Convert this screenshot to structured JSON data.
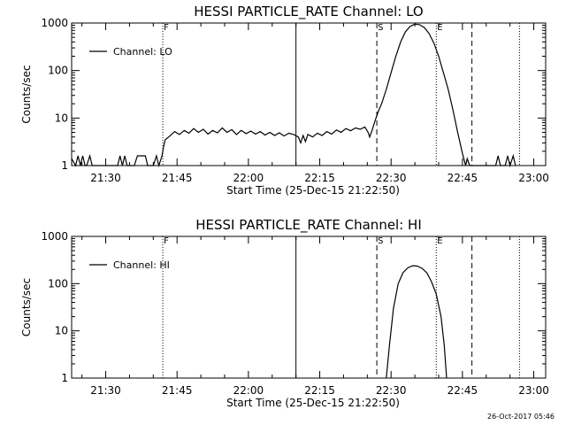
{
  "chart_data": [
    {
      "type": "line",
      "title": "HESSI PARTICLE_RATE Channel: LO",
      "xlabel": "Start Time (25-Dec-15 21:22:50)",
      "ylabel": "Counts/sec",
      "y_scale": "log",
      "xlim": [
        "21:22:50",
        "23:02:30"
      ],
      "ylim": [
        1,
        1000
      ],
      "x_ticks": [
        "21:30",
        "21:45",
        "22:00",
        "22:15",
        "22:30",
        "22:45",
        "23:00"
      ],
      "y_ticks": [
        "1",
        "10",
        "100",
        "1000"
      ],
      "legend": {
        "label": "Channel: LO",
        "position": "top-left"
      },
      "series": [
        {
          "name": "Channel: LO",
          "points": [
            [
              "21:22:50",
              1.4
            ],
            [
              "21:23:40",
              1.0
            ],
            [
              "21:24:10",
              1.6
            ],
            [
              "21:24:40",
              1.0
            ],
            [
              "21:25:10",
              1.6
            ],
            [
              "21:25:40",
              1.0
            ],
            [
              "21:26:00",
              1.0
            ],
            [
              "21:26:40",
              1.6
            ],
            [
              "21:27:10",
              1.0
            ],
            [
              "21:32:30",
              1.0
            ],
            [
              "21:33:00",
              1.6
            ],
            [
              "21:33:30",
              1.0
            ],
            [
              "21:34:00",
              1.6
            ],
            [
              "21:34:30",
              1.0
            ],
            [
              "21:36:00",
              1.0
            ],
            [
              "21:36:40",
              1.6
            ],
            [
              "21:38:20",
              1.6
            ],
            [
              "21:38:50",
              1.0
            ],
            [
              "21:40:00",
              1.0
            ],
            [
              "21:40:40",
              1.6
            ],
            [
              "21:41:10",
              1.0
            ],
            [
              "21:41:50",
              1.6
            ],
            [
              "21:42:10",
              2.5
            ],
            [
              "21:42:30",
              3.5
            ],
            [
              "21:43:30",
              4.2
            ],
            [
              "21:44:30",
              5.2
            ],
            [
              "21:45:30",
              4.5
            ],
            [
              "21:46:30",
              5.5
            ],
            [
              "21:47:30",
              4.8
            ],
            [
              "21:48:30",
              6.0
            ],
            [
              "21:49:30",
              5.0
            ],
            [
              "21:50:30",
              5.8
            ],
            [
              "21:51:30",
              4.6
            ],
            [
              "21:52:30",
              5.5
            ],
            [
              "21:53:30",
              4.9
            ],
            [
              "21:54:30",
              6.2
            ],
            [
              "21:55:30",
              5.0
            ],
            [
              "21:56:30",
              5.7
            ],
            [
              "21:57:30",
              4.5
            ],
            [
              "21:58:30",
              5.5
            ],
            [
              "21:59:30",
              4.7
            ],
            [
              "22:00:30",
              5.3
            ],
            [
              "22:01:30",
              4.6
            ],
            [
              "22:02:30",
              5.2
            ],
            [
              "22:03:30",
              4.4
            ],
            [
              "22:04:30",
              5.0
            ],
            [
              "22:05:30",
              4.3
            ],
            [
              "22:06:30",
              4.9
            ],
            [
              "22:07:30",
              4.2
            ],
            [
              "22:08:30",
              4.8
            ],
            [
              "22:09:30",
              4.5
            ],
            [
              "22:10:30",
              4.0
            ],
            [
              "22:11:00",
              3.0
            ],
            [
              "22:11:30",
              4.3
            ],
            [
              "22:12:00",
              3.2
            ],
            [
              "22:12:30",
              4.5
            ],
            [
              "22:13:30",
              4.0
            ],
            [
              "22:14:30",
              4.8
            ],
            [
              "22:15:30",
              4.3
            ],
            [
              "22:16:30",
              5.2
            ],
            [
              "22:17:30",
              4.6
            ],
            [
              "22:18:30",
              5.6
            ],
            [
              "22:19:30",
              5.0
            ],
            [
              "22:20:30",
              6.0
            ],
            [
              "22:21:30",
              5.4
            ],
            [
              "22:22:30",
              6.2
            ],
            [
              "22:23:30",
              5.8
            ],
            [
              "22:24:30",
              6.5
            ],
            [
              "22:25:10",
              5.0
            ],
            [
              "22:25:30",
              4.0
            ],
            [
              "22:26:00",
              5.5
            ],
            [
              "22:26:40",
              9.0
            ],
            [
              "22:27:20",
              14
            ],
            [
              "22:28:00",
              20
            ],
            [
              "22:29:00",
              40
            ],
            [
              "22:30:00",
              90
            ],
            [
              "22:31:00",
              200
            ],
            [
              "22:32:00",
              400
            ],
            [
              "22:33:00",
              650
            ],
            [
              "22:34:00",
              850
            ],
            [
              "22:35:00",
              950
            ],
            [
              "22:36:00",
              920
            ],
            [
              "22:37:00",
              800
            ],
            [
              "22:38:00",
              600
            ],
            [
              "22:39:00",
              380
            ],
            [
              "22:40:00",
              200
            ],
            [
              "22:41:00",
              90
            ],
            [
              "22:42:00",
              40
            ],
            [
              "22:43:00",
              15
            ],
            [
              "22:44:00",
              5
            ],
            [
              "22:45:00",
              1.8
            ],
            [
              "22:45:40",
              1.0
            ],
            [
              "22:46:00",
              1.4
            ],
            [
              "22:46:30",
              1.0
            ],
            [
              "22:52:00",
              1.0
            ],
            [
              "22:52:30",
              1.6
            ],
            [
              "22:53:00",
              1.0
            ],
            [
              "22:54:00",
              1.0
            ],
            [
              "22:54:30",
              1.6
            ],
            [
              "22:55:00",
              1.0
            ],
            [
              "22:55:40",
              1.6
            ],
            [
              "22:56:10",
              1.0
            ]
          ]
        }
      ],
      "vertical_markers": [
        {
          "x": "21:42:00",
          "style": "dotted",
          "label": "F"
        },
        {
          "x": "22:10:00",
          "style": "solid",
          "label": ""
        },
        {
          "x": "22:27:00",
          "style": "dashed",
          "label": "S"
        },
        {
          "x": "22:39:30",
          "style": "dotted",
          "label": "E"
        },
        {
          "x": "22:47:00",
          "style": "dashed",
          "label": ""
        },
        {
          "x": "22:57:00",
          "style": "dotted",
          "label": ""
        }
      ]
    },
    {
      "type": "line",
      "title": "HESSI PARTICLE_RATE Channel: HI",
      "xlabel": "Start Time (25-Dec-15 21:22:50)",
      "ylabel": "Counts/sec",
      "y_scale": "log",
      "xlim": [
        "21:22:50",
        "23:02:30"
      ],
      "ylim": [
        1,
        1000
      ],
      "x_ticks": [
        "21:30",
        "21:45",
        "22:00",
        "22:15",
        "22:30",
        "22:45",
        "23:00"
      ],
      "y_ticks": [
        "1",
        "10",
        "100",
        "1000"
      ],
      "legend": {
        "label": "Channel: HI",
        "position": "top-left"
      },
      "series": [
        {
          "name": "Channel: HI",
          "points": [
            [
              "22:29:00",
              1.0
            ],
            [
              "22:29:40",
              5
            ],
            [
              "22:30:30",
              30
            ],
            [
              "22:31:30",
              100
            ],
            [
              "22:32:30",
              170
            ],
            [
              "22:33:30",
              215
            ],
            [
              "22:34:30",
              240
            ],
            [
              "22:35:30",
              235
            ],
            [
              "22:36:30",
              210
            ],
            [
              "22:37:30",
              170
            ],
            [
              "22:38:30",
              110
            ],
            [
              "22:39:30",
              60
            ],
            [
              "22:40:30",
              20
            ],
            [
              "22:41:10",
              5
            ],
            [
              "22:41:40",
              1.0
            ]
          ]
        }
      ],
      "vertical_markers": [
        {
          "x": "21:42:00",
          "style": "dotted",
          "label": "F"
        },
        {
          "x": "22:10:00",
          "style": "solid",
          "label": ""
        },
        {
          "x": "22:27:00",
          "style": "dashed",
          "label": "S"
        },
        {
          "x": "22:39:30",
          "style": "dotted",
          "label": "E"
        },
        {
          "x": "22:47:00",
          "style": "dashed",
          "label": ""
        },
        {
          "x": "22:57:00",
          "style": "dotted",
          "label": ""
        }
      ]
    }
  ],
  "footer": {
    "timestamp": "26-Oct-2017 05:46"
  }
}
